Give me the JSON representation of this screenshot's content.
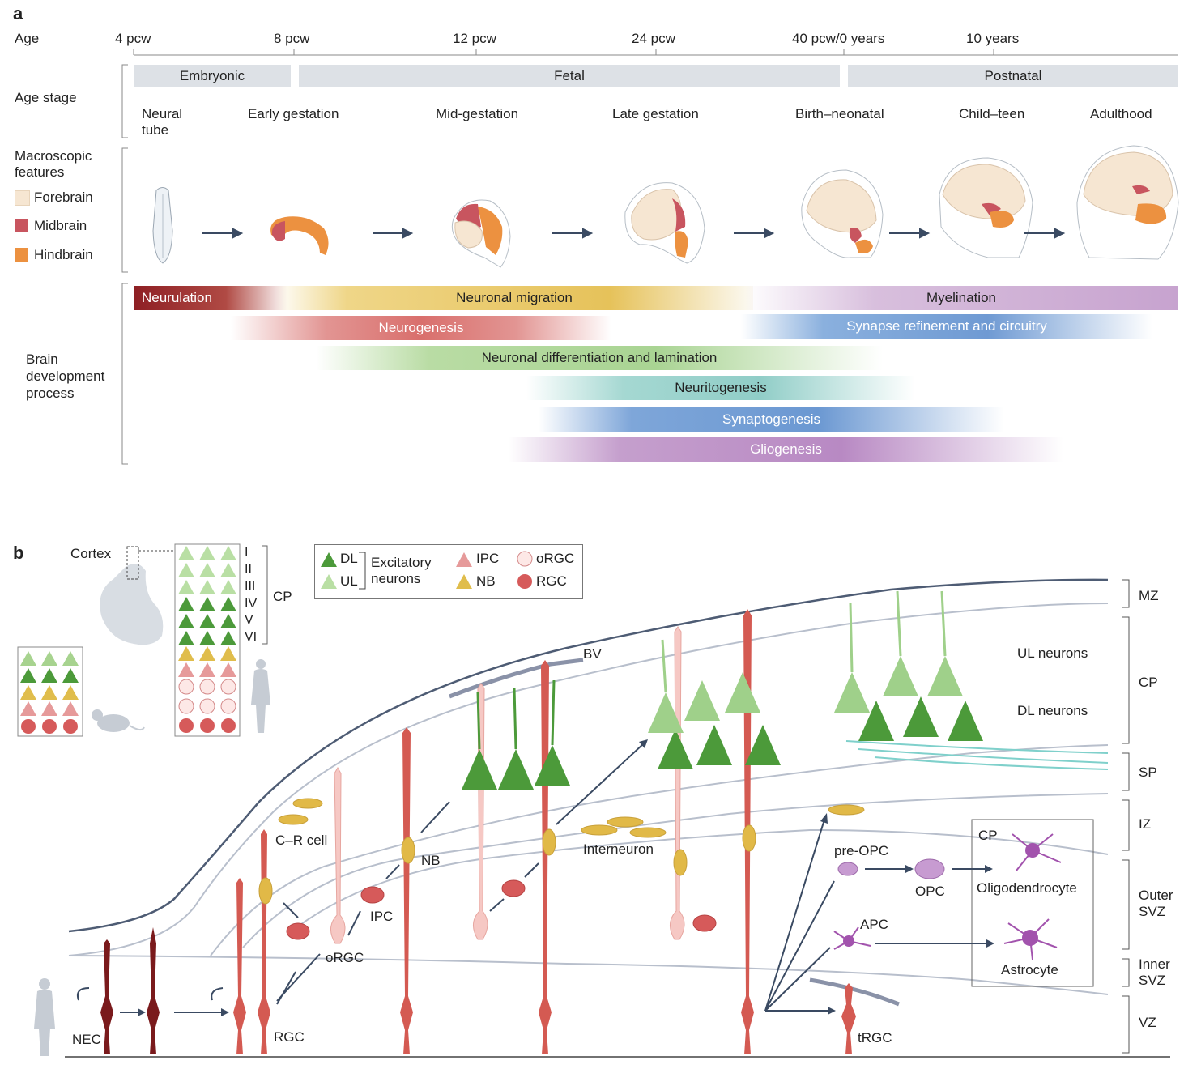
{
  "panel_a": {
    "letter": "a",
    "age_label": "Age",
    "ages": [
      "4 pcw",
      "8 pcw",
      "12 pcw",
      "24 pcw",
      "40 pcw/0 years",
      "10 years"
    ],
    "age_stage_label": "Age stage",
    "stages": [
      "Embryonic",
      "Fetal",
      "Postnatal"
    ],
    "substages": [
      "Neural\ntube",
      "Early gestation",
      "Mid-gestation",
      "Late gestation",
      "Birth–neonatal",
      "Child–teen",
      "Adulthood"
    ],
    "macro_label": "Macroscopic\nfeatures",
    "macro_legend": [
      {
        "label": "Forebrain",
        "color": "#f6e6d2"
      },
      {
        "label": "Midbrain",
        "color": "#c8555f"
      },
      {
        "label": "Hindbrain",
        "color": "#ec9140"
      }
    ],
    "process_label": "Brain\ndevelopment\nprocess",
    "processes": [
      "Neurulation",
      "Neuronal migration",
      "Myelination",
      "Neurogenesis",
      "Synapse refinement and circuitry",
      "Neuronal differentiation and lamination",
      "Neuritogenesis",
      "Synaptogenesis",
      "Gliogenesis"
    ]
  },
  "panel_b": {
    "letter": "b",
    "cortex_label": "Cortex",
    "layers": [
      "I",
      "II",
      "III",
      "IV",
      "V",
      "VI"
    ],
    "cp_label": "CP",
    "legend": {
      "dl": "DL",
      "ul": "UL",
      "excitatory": "Excitatory\nneurons",
      "ipc": "IPC",
      "nb": "NB",
      "orgc": "oRGC",
      "rgc": "RGC"
    },
    "zones": [
      "MZ",
      "CP",
      "SP",
      "IZ",
      "Outer\nSVZ",
      "Inner\nSVZ",
      "VZ"
    ],
    "labels": {
      "bv": "BV",
      "ul_neurons": "UL neurons",
      "dl_neurons": "DL neurons",
      "cr_cell": "C–R cell",
      "nb": "NB",
      "ipc": "IPC",
      "orgc": "oRGC",
      "interneuron": "Interneuron",
      "pre_opc": "pre-OPC",
      "opc": "OPC",
      "apc": "APC",
      "cp_inner": "CP",
      "oligodendrocyte": "Oligodendrocyte",
      "astrocyte": "Astrocyte",
      "nec": "NEC",
      "rgc": "RGC",
      "trgc": "tRGC"
    }
  }
}
